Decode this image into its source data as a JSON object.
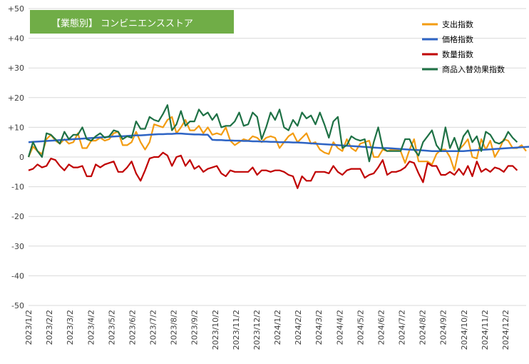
{
  "chart_data": {
    "type": "line",
    "title": "【業態別】 コンビニエンスストア",
    "title_bg": "#70AD47",
    "ylim": [
      -50,
      50
    ],
    "yticks": [
      "+50",
      "+40",
      "+30",
      "+20",
      "+10",
      "0",
      "-10",
      "-20",
      "-30",
      "-40",
      "-50"
    ],
    "ytick_values": [
      50,
      40,
      30,
      20,
      10,
      0,
      -10,
      -20,
      -30,
      -40,
      -50
    ],
    "grid": "horizontal",
    "legend_position": "top-right",
    "x_labels": [
      "2023/1/2",
      "2023/2/2",
      "2023/3/2",
      "2023/4/2",
      "2023/5/2",
      "2023/6/2",
      "2023/7/2",
      "2023/8/2",
      "2023/9/2",
      "2023/10/2",
      "2023/11/2",
      "2023/12/2",
      "2024/1/2",
      "2024/2/2",
      "2024/3/2",
      "2024/4/2",
      "2024/5/2",
      "2024/6/2",
      "2024/7/2",
      "2024/8/2",
      "2024/9/2",
      "2024/10/2",
      "2024/11/2",
      "2024/12/2"
    ],
    "series": [
      {
        "name": "支出指数",
        "color": "#F39C12",
        "values": [
          0,
          3.5,
          2,
          1,
          6,
          7.5,
          5.5,
          4.5,
          6,
          4.5,
          5,
          8,
          3,
          3,
          5.5,
          5.5,
          6.5,
          5.5,
          6,
          8,
          8.5,
          4,
          4,
          5,
          8.5,
          5,
          2.5,
          5,
          11,
          10.5,
          10,
          12.5,
          13.5,
          8,
          10,
          12.5,
          9,
          9,
          10.5,
          8,
          10,
          7.5,
          8,
          7.5,
          10,
          5.5,
          4,
          5,
          6,
          5.5,
          7,
          6.5,
          5,
          6.5,
          7,
          6.5,
          3,
          5,
          7,
          8,
          5,
          6.5,
          8,
          4.5,
          5,
          2.5,
          1.5,
          1,
          5,
          3,
          2,
          6,
          3,
          2,
          4.5,
          5,
          5.5,
          0,
          0,
          2.5,
          2,
          2.5,
          2.5,
          2,
          -2,
          2.5,
          6,
          -1.5,
          -1.5,
          -1.5,
          -2.5,
          1,
          2.5,
          2.5,
          0,
          -4.5,
          2.5,
          4,
          6,
          0,
          -0.5,
          6,
          2.5,
          5.5,
          0,
          2.5,
          6,
          5.5,
          3,
          3,
          4,
          2
        ],
        "values_note": ""
      },
      {
        "name": "価格指数",
        "color": "#2E64C4",
        "values": [
          5,
          5.1,
          5.2,
          5.3,
          5.4,
          5.5,
          5.6,
          5.7,
          5.8,
          5.9,
          6,
          6.1,
          6.2,
          6.3,
          6.4,
          6.5,
          6.6,
          6.7,
          6.8,
          6.9,
          7,
          7,
          7.1,
          7.2,
          7.3,
          7.3,
          7.4,
          7.5,
          7.6,
          7.7,
          7.7,
          7.8,
          7.8,
          7.9,
          7.9,
          7.8,
          7.7,
          7.6,
          7.6,
          7.5,
          7.5,
          5.8,
          5.7,
          5.7,
          5.6,
          5.6,
          5.5,
          5.5,
          5.4,
          5.4,
          5.3,
          5.3,
          5.2,
          5.2,
          5.1,
          5.1,
          5,
          5,
          5,
          4.9,
          4.9,
          4.8,
          4.7,
          4.6,
          4.5,
          4.4,
          4.3,
          4.2,
          4.1,
          4,
          3.9,
          3.8,
          3.7,
          3.6,
          3.5,
          3.4,
          3.3,
          3.2,
          3.1,
          3,
          3,
          2.9,
          2.8,
          2.7,
          2.6,
          2.5,
          2.4,
          2.3,
          2.2,
          2.1,
          2,
          2,
          2,
          2,
          2,
          2,
          2,
          2,
          2.1,
          2.2,
          2.3,
          2.4,
          2.5,
          2.6,
          2.7,
          2.8,
          2.9,
          3,
          3.1,
          3.2,
          3.3,
          3.4,
          3.5,
          3.5
        ],
        "values_note": ""
      },
      {
        "name": "数量指数",
        "color": "#C00000",
        "values": [
          -4.5,
          -4,
          -2.5,
          -3.5,
          -3,
          -0.5,
          -1,
          -3,
          -4.5,
          -2.5,
          -3.5,
          -3.5,
          -3,
          -6.5,
          -6.5,
          -2.5,
          -3.5,
          -2.5,
          -2,
          -1.5,
          -5,
          -5,
          -3.5,
          -1.5,
          -5.5,
          -8,
          -4.5,
          -0.5,
          0,
          0,
          1.5,
          0.5,
          -3,
          0,
          0.5,
          -3,
          -1,
          -4,
          -3,
          -5,
          -4,
          -3.5,
          -3,
          -5.5,
          -6.5,
          -4.5,
          -5,
          -5,
          -5,
          -5,
          -3.5,
          -6,
          -4.5,
          -4.5,
          -5,
          -4.5,
          -4.5,
          -5,
          -6,
          -6.5,
          -10.5,
          -6.5,
          -8,
          -8,
          -5,
          -5,
          -5,
          -5.5,
          -3,
          -5,
          -6,
          -4.5,
          -4,
          -4,
          -4,
          -7,
          -6,
          -5.5,
          -3.5,
          -1,
          -6,
          -5,
          -5,
          -4.5,
          -3.5,
          -1.5,
          -2,
          -5.5,
          -8.5,
          -2,
          -3,
          -3,
          -6,
          -6,
          -5,
          -6,
          -4,
          -6,
          -3,
          -6.5,
          -1.5,
          -5,
          -4,
          -5,
          -3.5,
          -4,
          -5,
          -3,
          -3,
          -4.5
        ],
        "values_note": ""
      },
      {
        "name": "商品入替効果指数",
        "color": "#1E7145",
        "values": [
          0,
          5,
          2,
          0,
          8,
          7.5,
          6,
          4.5,
          8.5,
          6,
          7.5,
          7.5,
          10,
          6,
          5.5,
          7,
          8,
          6.5,
          7,
          9,
          8.5,
          6,
          7,
          6.5,
          12,
          9.5,
          9.5,
          13.5,
          12.5,
          12,
          14.5,
          17.5,
          9,
          11,
          15.5,
          10.5,
          12,
          12,
          16,
          14,
          15,
          12.5,
          14.5,
          10,
          10.5,
          10.5,
          12,
          15,
          10.5,
          11,
          15,
          13.5,
          6,
          10,
          15,
          12.5,
          16,
          10,
          9,
          12.5,
          10.5,
          15,
          13,
          14,
          11,
          15,
          11,
          6.5,
          12,
          13.5,
          3,
          4,
          7,
          6,
          5.5,
          6,
          -1.5,
          5,
          10,
          3,
          2,
          2,
          2,
          2,
          6,
          6,
          2.5,
          0.5,
          5,
          7,
          9,
          4,
          2,
          10,
          3,
          6.5,
          2,
          7,
          9,
          5,
          7,
          2,
          8.5,
          7.5,
          5,
          4.5,
          5.5,
          8.5,
          6.5,
          5
        ],
        "values_note": ""
      }
    ]
  }
}
